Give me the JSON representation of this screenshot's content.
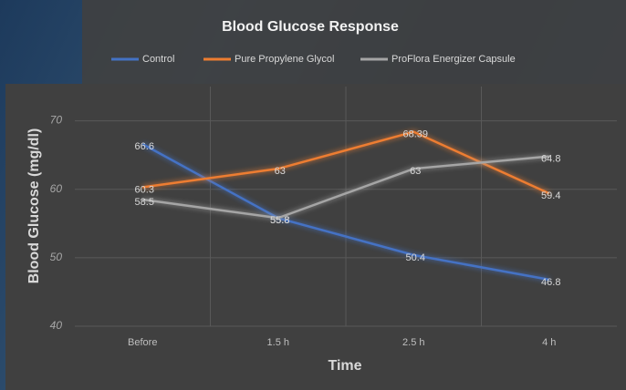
{
  "chart_data": {
    "type": "line",
    "title": "Blood Glucose Response",
    "x_label": "Time",
    "y_label": "Blood Glucose (mg/dl)",
    "categories": [
      "Before",
      "1.5 h",
      "2.5 h",
      "4 h"
    ],
    "series": [
      {
        "name": "Control",
        "color": "#4472c4",
        "values": [
          66.6,
          55.8,
          50.4,
          46.8
        ]
      },
      {
        "name": "Pure Propylene Glycol",
        "color": "#ed7d31",
        "values": [
          60.3,
          63,
          68.39,
          59.4
        ]
      },
      {
        "name": "ProFlora Energizer Capsule",
        "color": "#a5a5a5",
        "values": [
          58.5,
          55.8,
          63,
          64.8
        ]
      }
    ],
    "ylim": [
      40,
      75
    ],
    "yticks": [
      40,
      50,
      60,
      70
    ],
    "grid": true,
    "legend": "top"
  }
}
